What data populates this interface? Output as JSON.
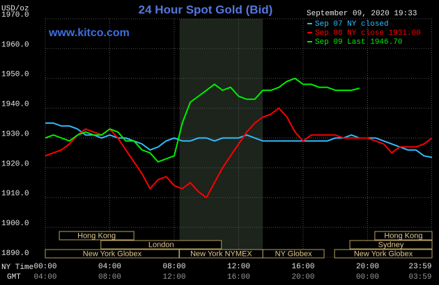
{
  "chart_data": {
    "type": "line",
    "title": "24 Hour Spot Gold (Bid)",
    "subtitle": "www.kitco.com",
    "y_label": "USD/oz",
    "x_label": "NY Time",
    "x2_label": "GMT",
    "legend_title": "September 09, 2020 19:33",
    "ylim": [
      1890,
      1970
    ],
    "yticks": [
      {
        "value": 1890,
        "label": "1890.0"
      },
      {
        "value": 1900,
        "label": "1900.0"
      },
      {
        "value": 1910,
        "label": "1910.0"
      },
      {
        "value": 1920,
        "label": "1920.0"
      },
      {
        "value": 1930,
        "label": "1930.0"
      },
      {
        "value": 1940,
        "label": "1940.0"
      },
      {
        "value": 1950,
        "label": "1950.0"
      },
      {
        "value": 1960,
        "label": "1960.0"
      },
      {
        "value": 1970,
        "label": "1970.0"
      }
    ],
    "xlim": [
      0,
      24
    ],
    "xticks": [
      {
        "value": 0,
        "label": "00:00"
      },
      {
        "value": 4,
        "label": "04:00"
      },
      {
        "value": 8,
        "label": "08:00"
      },
      {
        "value": 12,
        "label": "12:00"
      },
      {
        "value": 16,
        "label": "16:00"
      },
      {
        "value": 20,
        "label": "20:00"
      },
      {
        "value": 23.98,
        "label": "23:59"
      }
    ],
    "xticks_gmt": [
      {
        "value": 0,
        "label": "04:00"
      },
      {
        "value": 4,
        "label": "08:00"
      },
      {
        "value": 8,
        "label": "12:00"
      },
      {
        "value": 12,
        "label": "16:00"
      },
      {
        "value": 16,
        "label": "20:00"
      },
      {
        "value": 20,
        "label": "00:00"
      },
      {
        "value": 23.98,
        "label": "03:59"
      }
    ],
    "grid": true,
    "highlight_span": [
      8.33,
      13.5
    ],
    "x": [
      0,
      0.5,
      1,
      1.5,
      2,
      2.5,
      3,
      3.5,
      4,
      4.5,
      5,
      5.5,
      6,
      6.5,
      7,
      7.5,
      8,
      8.5,
      9,
      9.5,
      10,
      10.5,
      11,
      11.5,
      12,
      12.5,
      13,
      13.5,
      14,
      14.5,
      15,
      15.5,
      16,
      16.5,
      17,
      17.5,
      18,
      18.5,
      19,
      19.5,
      20,
      20.5,
      21,
      21.5,
      22,
      22.5,
      23,
      23.5,
      24
    ],
    "series": [
      {
        "name": "Sep 07 NY closed",
        "color": "#33bbff",
        "values": [
          1935,
          1935,
          1934,
          1934,
          1933,
          1931,
          1931,
          1930,
          1931,
          1930,
          1930,
          1929,
          1928,
          1926,
          1927,
          1929,
          1930,
          1929,
          1929,
          1930,
          1930,
          1929,
          1930,
          1930,
          1930,
          1931,
          1930,
          1929,
          1929,
          1929,
          1929,
          1929,
          1929,
          1929,
          1929,
          1929,
          1930,
          1930,
          1931,
          1930,
          1930,
          1930,
          1929,
          1928,
          1927,
          1926,
          1926,
          1924,
          1923.5
        ]
      },
      {
        "name": "Sep 08 NY close 1931.00",
        "color": "#ff0000",
        "values": [
          1924,
          1925,
          1926,
          1928,
          1931,
          1933,
          1932,
          1931,
          1933,
          1930,
          1926,
          1922,
          1918,
          1913,
          1916,
          1917,
          1914,
          1913,
          1915,
          1912,
          1910,
          1915,
          1920,
          1924,
          1928,
          1932,
          1935,
          1937,
          1938,
          1940,
          1937,
          1932,
          1929,
          1931,
          1931,
          1931,
          1931,
          1930,
          1930,
          1930,
          1930,
          1929,
          1928,
          1925,
          1927,
          1927,
          1927,
          1928,
          1930
        ]
      },
      {
        "name": "Sep 09 Last 1946.70",
        "color": "#00ee00",
        "values": [
          1930,
          1931,
          1930,
          1929,
          1931,
          1932,
          1931,
          1931,
          1933,
          1932,
          1929,
          1929,
          1926,
          1925,
          1922,
          1923,
          1924,
          1935,
          1942,
          1944,
          1946,
          1948,
          1946,
          1947,
          1944,
          1943,
          1943,
          1946,
          1946,
          1947,
          1949,
          1950,
          1948,
          1948,
          1947,
          1947,
          1946,
          1946,
          1946,
          1946.7,
          null,
          null,
          null,
          null,
          null,
          null,
          null,
          null,
          null
        ]
      }
    ],
    "sessions_rows": [
      [
        {
          "label": "Hong Kong",
          "start": 0.87,
          "end": 5.5
        },
        {
          "label": "Hong Kong",
          "start": 20.45,
          "end": 24
        }
      ],
      [
        {
          "label": "London",
          "start": 3.45,
          "end": 10.93
        },
        {
          "label": "Sydney",
          "start": 18.9,
          "end": 24
        }
      ],
      [
        {
          "label": "New York Globex",
          "start": 0,
          "end": 8.3
        },
        {
          "label": "New York NYMEX",
          "start": 8.33,
          "end": 13.5
        },
        {
          "label": "NY Globex",
          "start": 13.5,
          "end": 17.3
        },
        {
          "label": "New York Globex",
          "start": 17.95,
          "end": 24
        }
      ]
    ]
  }
}
